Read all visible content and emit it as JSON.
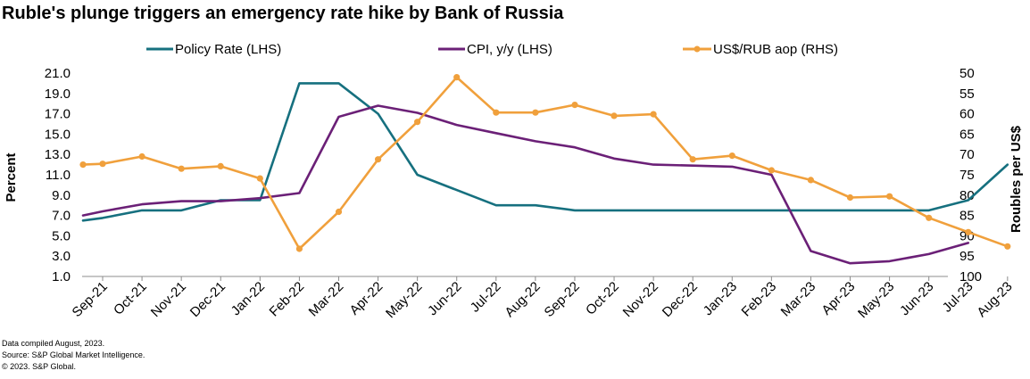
{
  "chart_data": {
    "type": "line",
    "title": "Ruble's plunge triggers an emergency rate hike by Bank of Russia",
    "ylabel_left": "Percent",
    "ylabel_right": "Roubles  per US$",
    "categories": [
      "Sep-21",
      "Oct-21",
      "Nov-21",
      "Dec-21",
      "Jan-22",
      "Feb-22",
      "Mar-22",
      "Apr-22",
      "May-22",
      "Jun-22",
      "Jul-22",
      "Aug-22",
      "Sep-22",
      "Oct-22",
      "Nov-22",
      "Dec-22",
      "Jan-23",
      "Feb-23",
      "Mar-23",
      "Apr-23",
      "May-23",
      "Jun-23",
      "Jul-23",
      "Aug-23"
    ],
    "left_axis": {
      "min": 1.0,
      "max": 21.0,
      "ticks": [
        "21.0",
        "19.0",
        "17.0",
        "15.0",
        "13.0",
        "11.0",
        "9.0",
        "7.0",
        "5.0",
        "3.0",
        "1.0"
      ]
    },
    "right_axis": {
      "min": 50,
      "max": 100,
      "reversed": true,
      "ticks": [
        "50",
        "55",
        "60",
        "65",
        "70",
        "75",
        "80",
        "85",
        "90",
        "95",
        "100"
      ]
    },
    "legend_position": "top",
    "grid": false,
    "series": [
      {
        "name": "Policy Rate (LHS)",
        "axis": "left",
        "color": "#16707f",
        "marker": false,
        "points": [
          [
            -0.5,
            6.5
          ],
          [
            0,
            6.75
          ],
          [
            1,
            7.5
          ],
          [
            2,
            7.5
          ],
          [
            3,
            8.5
          ],
          [
            4,
            8.5
          ],
          [
            5,
            20.0
          ],
          [
            6,
            20.0
          ],
          [
            7,
            17.0
          ],
          [
            8,
            11.0
          ],
          [
            9,
            9.5
          ],
          [
            10,
            8.0
          ],
          [
            11,
            8.0
          ],
          [
            12,
            7.5
          ],
          [
            13,
            7.5
          ],
          [
            14,
            7.5
          ],
          [
            15,
            7.5
          ],
          [
            16,
            7.5
          ],
          [
            17,
            7.5
          ],
          [
            18,
            7.5
          ],
          [
            19,
            7.5
          ],
          [
            20,
            7.5
          ],
          [
            21,
            7.5
          ],
          [
            22,
            8.5
          ],
          [
            23,
            12.0
          ]
        ]
      },
      {
        "name": "CPI, y/y (LHS)",
        "axis": "left",
        "color": "#6b2077",
        "marker": false,
        "points": [
          [
            -0.5,
            7.0
          ],
          [
            0,
            7.4
          ],
          [
            1,
            8.1
          ],
          [
            2,
            8.4
          ],
          [
            3,
            8.4
          ],
          [
            4,
            8.7
          ],
          [
            5,
            9.2
          ],
          [
            6,
            16.7
          ],
          [
            7,
            17.8
          ],
          [
            8,
            17.1
          ],
          [
            9,
            15.9
          ],
          [
            10,
            15.1
          ],
          [
            11,
            14.3
          ],
          [
            12,
            13.7
          ],
          [
            13,
            12.6
          ],
          [
            14,
            12.0
          ],
          [
            15,
            11.9
          ],
          [
            16,
            11.8
          ],
          [
            17,
            11.0
          ],
          [
            18,
            3.5
          ],
          [
            19,
            2.3
          ],
          [
            20,
            2.5
          ],
          [
            21,
            3.2
          ],
          [
            22,
            4.3
          ]
        ]
      },
      {
        "name": "US$/RUB aop (RHS)",
        "axis": "right",
        "color": "#f0a03c",
        "marker": true,
        "points": [
          [
            -0.5,
            72.5
          ],
          [
            0,
            72.3
          ],
          [
            1,
            70.5
          ],
          [
            2,
            73.5
          ],
          [
            3,
            72.9
          ],
          [
            4,
            75.9
          ],
          [
            5,
            93.2
          ],
          [
            6,
            84.1
          ],
          [
            7,
            71.2
          ],
          [
            8,
            62.0
          ],
          [
            9,
            51.0
          ],
          [
            10,
            59.7
          ],
          [
            11,
            59.7
          ],
          [
            12,
            57.8
          ],
          [
            13,
            60.5
          ],
          [
            14,
            60.1
          ],
          [
            15,
            71.2
          ],
          [
            16,
            70.3
          ],
          [
            17,
            73.9
          ],
          [
            18,
            76.3
          ],
          [
            19,
            80.6
          ],
          [
            20,
            80.3
          ],
          [
            21,
            85.6
          ],
          [
            22,
            89.1
          ],
          [
            23,
            92.6
          ]
        ]
      }
    ],
    "footnotes": [
      "Data compiled August, 2023.",
      "Source: S&P Global Market Intelligence.",
      "© 2023. S&P Global."
    ]
  }
}
